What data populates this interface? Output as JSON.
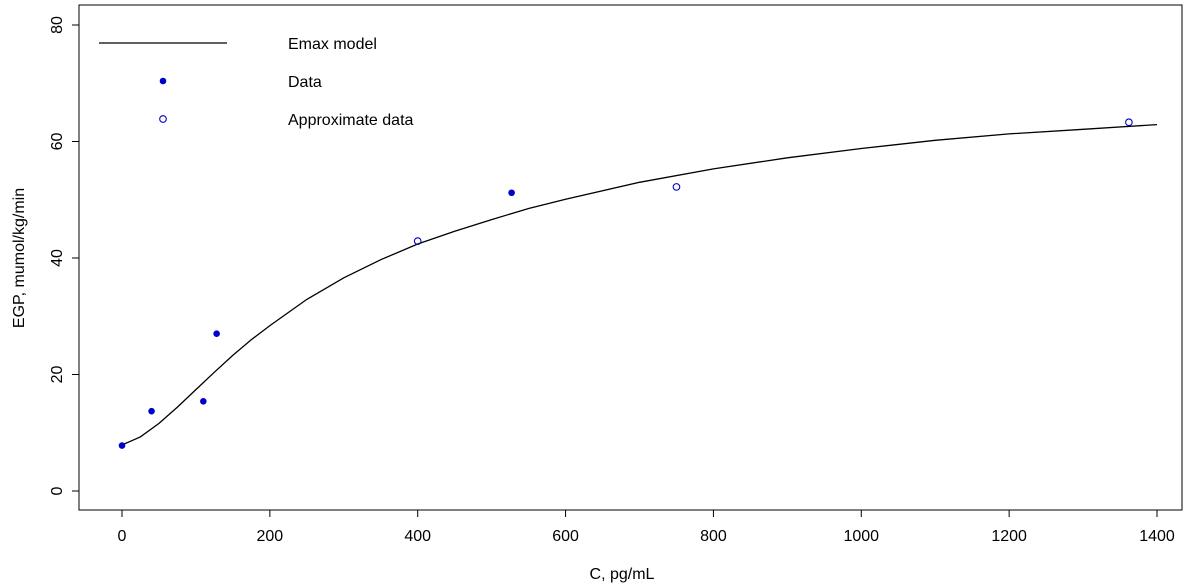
{
  "chart_data": {
    "type": "scatter",
    "title": "",
    "xlabel": "C, pg/mL",
    "ylabel": "EGP, mumol/kg/min",
    "xlim": [
      -50,
      1400
    ],
    "ylim": [
      -3,
      83
    ],
    "x_ticks": [
      0,
      200,
      400,
      600,
      800,
      1000,
      1200,
      1400
    ],
    "y_ticks": [
      0,
      20,
      40,
      60,
      80
    ],
    "grid": false,
    "legend_position": "top-left",
    "legend": [
      {
        "label": "Emax model",
        "kind": "line"
      },
      {
        "label": "Data",
        "kind": "filled-point"
      },
      {
        "label": "Approximate data",
        "kind": "open-point"
      }
    ],
    "series": [
      {
        "name": "Data",
        "kind": "filled-point",
        "color": "#0000cc",
        "points": [
          {
            "x": 0,
            "y": 7.8
          },
          {
            "x": 40,
            "y": 13.7
          },
          {
            "x": 110,
            "y": 15.4
          },
          {
            "x": 128,
            "y": 27.0
          },
          {
            "x": 527,
            "y": 51.2
          }
        ]
      },
      {
        "name": "Approximate data",
        "kind": "open-point",
        "color": "#0000cc",
        "points": [
          {
            "x": 400,
            "y": 42.9
          },
          {
            "x": 750,
            "y": 52.2
          },
          {
            "x": 1362,
            "y": 63.3
          }
        ]
      },
      {
        "name": "Emax model",
        "kind": "line",
        "color": "#000000",
        "points": [
          {
            "x": 0,
            "y": 7.9
          },
          {
            "x": 25,
            "y": 9.3
          },
          {
            "x": 50,
            "y": 11.6
          },
          {
            "x": 75,
            "y": 14.4
          },
          {
            "x": 100,
            "y": 17.4
          },
          {
            "x": 125,
            "y": 20.4
          },
          {
            "x": 150,
            "y": 23.3
          },
          {
            "x": 175,
            "y": 26.0
          },
          {
            "x": 200,
            "y": 28.4
          },
          {
            "x": 250,
            "y": 32.9
          },
          {
            "x": 300,
            "y": 36.6
          },
          {
            "x": 350,
            "y": 39.7
          },
          {
            "x": 400,
            "y": 42.4
          },
          {
            "x": 450,
            "y": 44.6
          },
          {
            "x": 500,
            "y": 46.6
          },
          {
            "x": 550,
            "y": 48.5
          },
          {
            "x": 600,
            "y": 50.1
          },
          {
            "x": 700,
            "y": 53.0
          },
          {
            "x": 800,
            "y": 55.3
          },
          {
            "x": 900,
            "y": 57.2
          },
          {
            "x": 1000,
            "y": 58.8
          },
          {
            "x": 1100,
            "y": 60.2
          },
          {
            "x": 1200,
            "y": 61.3
          },
          {
            "x": 1300,
            "y": 62.1
          },
          {
            "x": 1400,
            "y": 62.9
          }
        ]
      }
    ]
  }
}
